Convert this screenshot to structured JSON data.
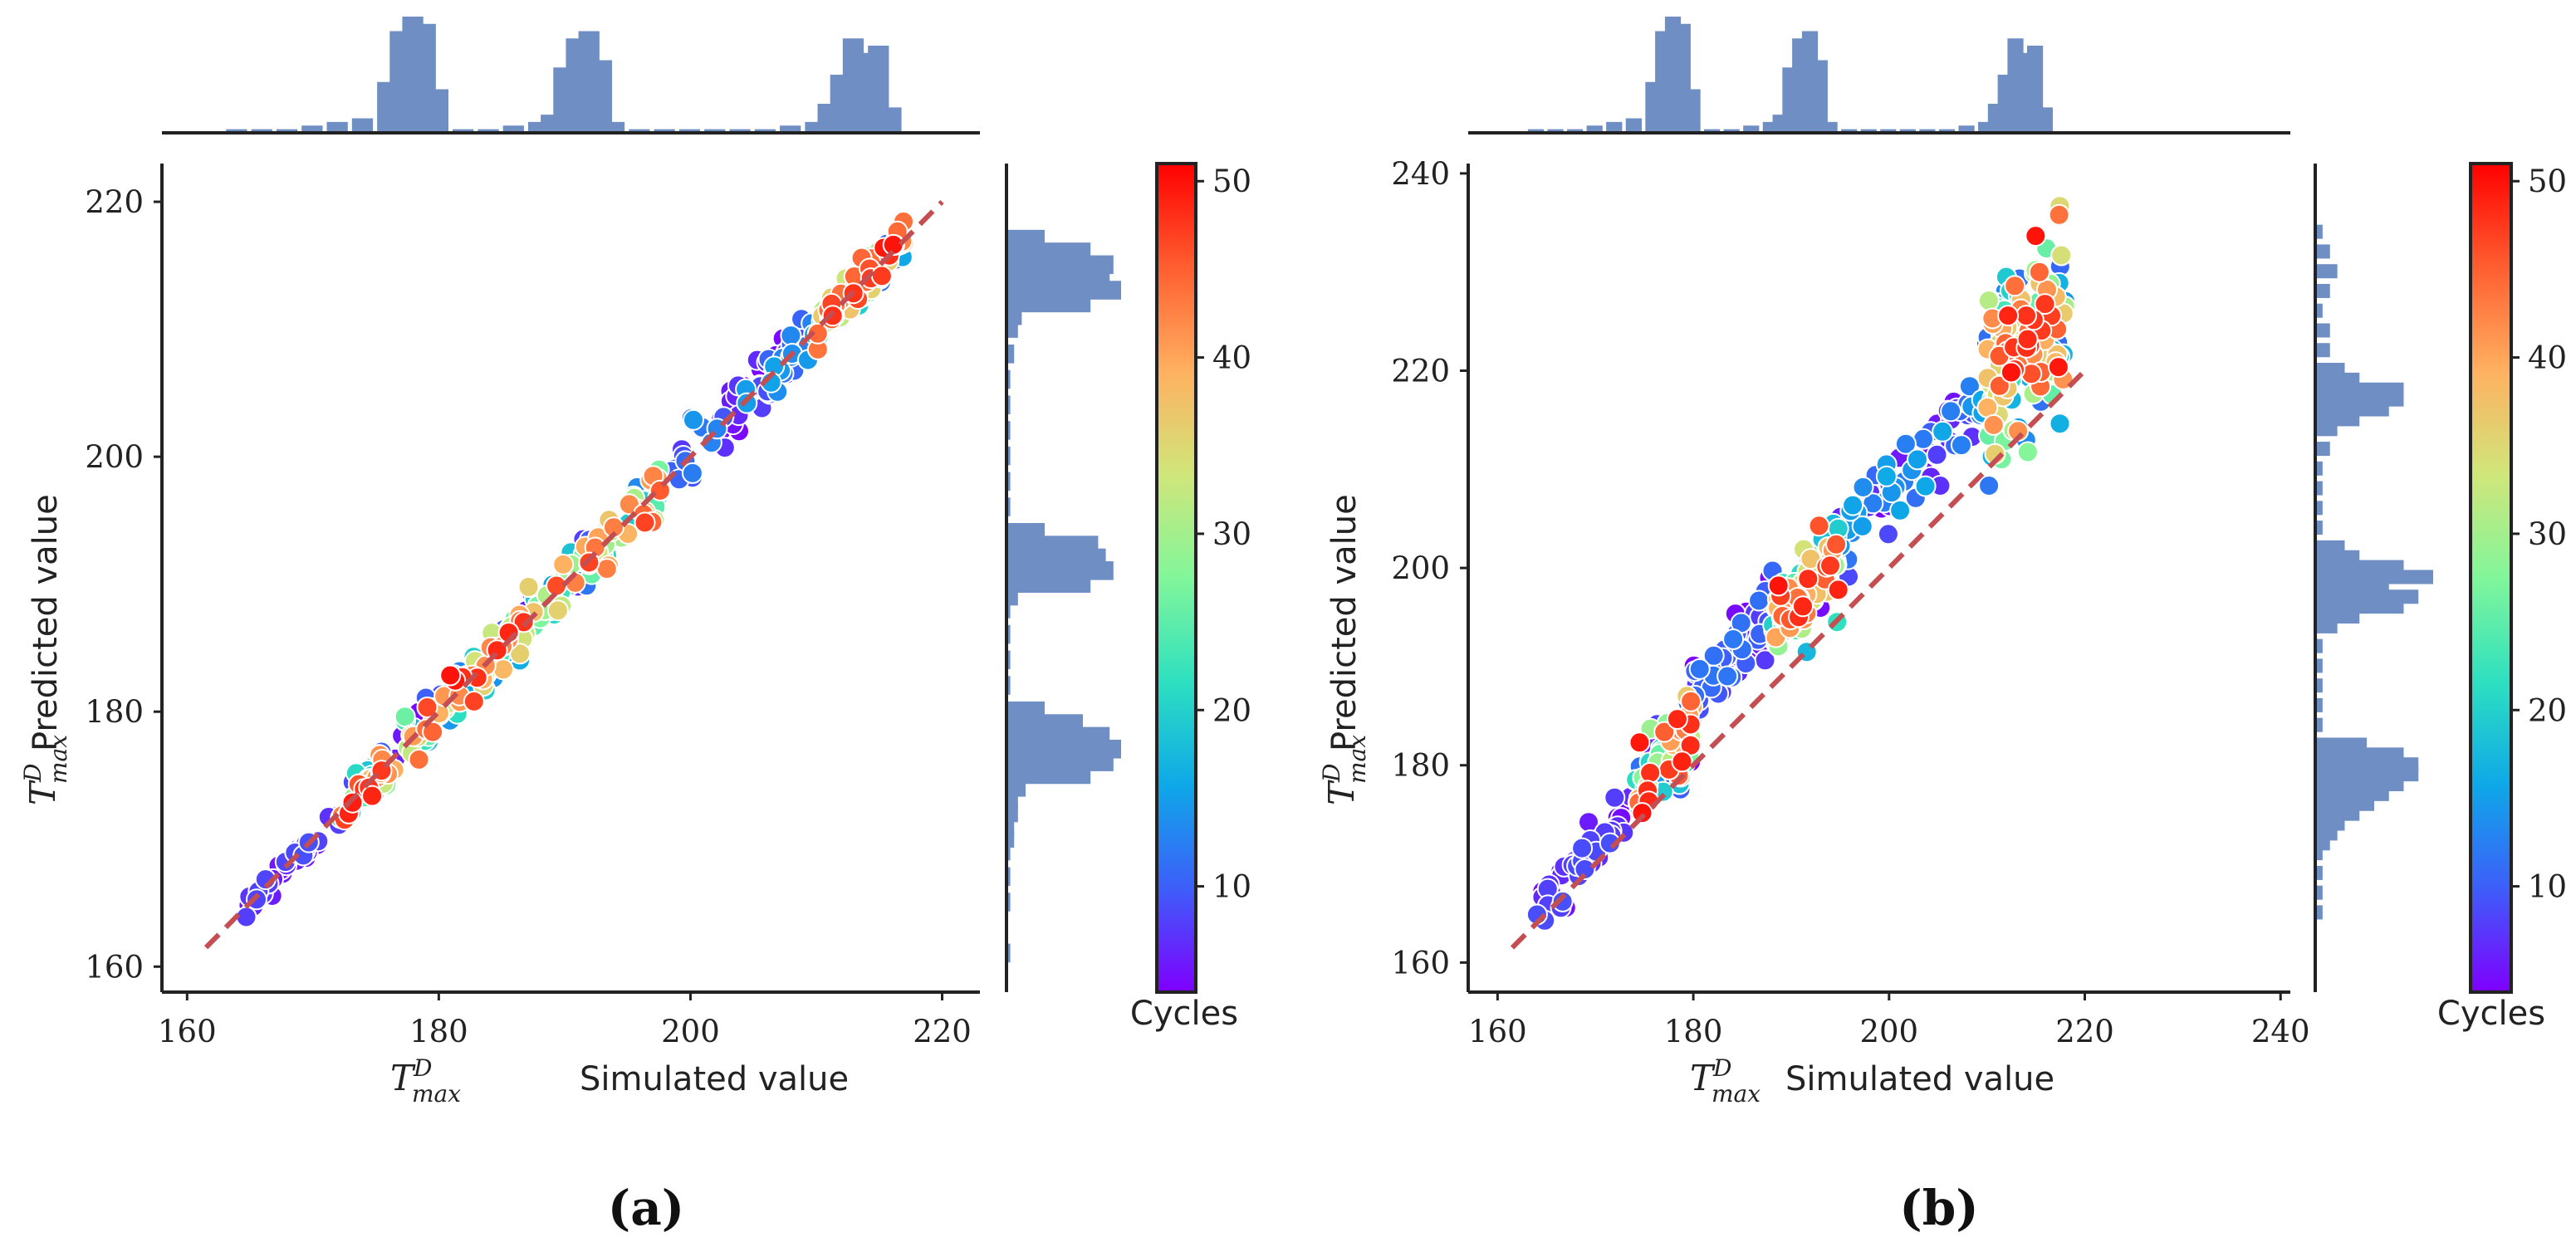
{
  "figure": {
    "colorbar_label": "Cycles",
    "colorbar_ticks": [
      10,
      20,
      30,
      40,
      50
    ],
    "colorbar_range": [
      4,
      51
    ],
    "colormap": [
      "#7f00ff",
      "#3d5ef9",
      "#0ea8e8",
      "#2ee0c0",
      "#82f69a",
      "#d0e67a",
      "#ffb060",
      "#ff5e30",
      "#ff0000"
    ],
    "xlabel_math": "T",
    "xlabel_sup": "D",
    "xlabel_sub": "max",
    "xlabel_text": "Simulated value",
    "ylabel_text": "Predicted value",
    "hist_color": "#6f8fc4",
    "dashed_line_color": "#c44e52"
  },
  "panel_a": {
    "label": "(a)"
  },
  "panel_b": {
    "label": "(b)"
  },
  "chart_data": [
    {
      "type": "scatter",
      "title": "(a)",
      "xlabel": "T_max^D Simulated value",
      "ylabel": "T_max^D Predicted value",
      "xlim": [
        158,
        223
      ],
      "ylim": [
        158,
        223
      ],
      "xticks": [
        160,
        180,
        200,
        220
      ],
      "yticks": [
        160,
        180,
        200,
        220
      ],
      "reference_line": [
        [
          161.5,
          161.5
        ],
        [
          220,
          220
        ]
      ],
      "colorbar": "Cycles",
      "clusters": [
        {
          "x_range": [
            164,
            172
          ],
          "y_offset": 0.0,
          "spread": 0.5,
          "cycles": [
            4,
            9
          ],
          "count": 40
        },
        {
          "x_range": [
            172,
            184
          ],
          "y_offset": 0.0,
          "spread": 0.9,
          "cycles": [
            4,
            50
          ],
          "count": 120
        },
        {
          "x_range": [
            184,
            198
          ],
          "y_offset": 0.0,
          "spread": 1.0,
          "cycles": [
            4,
            50
          ],
          "count": 130
        },
        {
          "x_range": [
            198,
            210
          ],
          "y_offset": 0.0,
          "spread": 1.1,
          "cycles": [
            4,
            16
          ],
          "count": 70
        },
        {
          "x_range": [
            210,
            217
          ],
          "y_offset": 0.0,
          "spread": 0.8,
          "cycles": [
            10,
            50
          ],
          "count": 130
        }
      ],
      "top_histogram": {
        "x": [
          164,
          166,
          168,
          170,
          172,
          174,
          176,
          177,
          178,
          179,
          180,
          182,
          184,
          186,
          188,
          189,
          190,
          191,
          192,
          193,
          194,
          196,
          198,
          200,
          202,
          204,
          206,
          208,
          210,
          211,
          212,
          213,
          214,
          215,
          216
        ],
        "counts": [
          1,
          1,
          1,
          2,
          3,
          4,
          14,
          28,
          32,
          30,
          12,
          1,
          1,
          2,
          3,
          5,
          18,
          26,
          28,
          20,
          3,
          1,
          1,
          1,
          1,
          1,
          1,
          2,
          3,
          8,
          16,
          26,
          22,
          24,
          7
        ]
      },
      "right_histogram": {
        "y": [
          161,
          165,
          167,
          169,
          170,
          171,
          172,
          173,
          174,
          175,
          176,
          177,
          178,
          179,
          180,
          182,
          184,
          186,
          188,
          189,
          190,
          191,
          192,
          193,
          194,
          196,
          198,
          200,
          202,
          204,
          206,
          208,
          210,
          211,
          212,
          213,
          214,
          215,
          216,
          217
        ],
        "counts": [
          1,
          1,
          1,
          1,
          2,
          2,
          3,
          3,
          5,
          22,
          28,
          30,
          27,
          20,
          10,
          1,
          1,
          1,
          1,
          3,
          22,
          28,
          26,
          24,
          10,
          1,
          1,
          1,
          1,
          1,
          1,
          2,
          3,
          4,
          22,
          30,
          27,
          28,
          22,
          10
        ]
      }
    },
    {
      "type": "scatter",
      "title": "(b)",
      "xlabel": "T_max^D Simulated value",
      "ylabel": "T_max^D Predicted value",
      "xlim": [
        157,
        241
      ],
      "ylim": [
        157,
        241
      ],
      "xticks": [
        160,
        180,
        200,
        220,
        240
      ],
      "yticks": [
        160,
        180,
        200,
        220,
        240
      ],
      "reference_line": [
        [
          161.5,
          161.5
        ],
        [
          220,
          220
        ]
      ],
      "colorbar": "Cycles",
      "clusters": [
        {
          "x_range": [
            164,
            174
          ],
          "y_offset": 1.3,
          "spread": 1.3,
          "cycles": [
            4,
            9
          ],
          "count": 60
        },
        {
          "x_range": [
            174,
            180
          ],
          "y_offset": 3.5,
          "spread": 2.2,
          "cycles": [
            4,
            50
          ],
          "count": 90
        },
        {
          "x_range": [
            180,
            188
          ],
          "y_offset": 7.5,
          "spread": 2.0,
          "cycles": [
            4,
            12
          ],
          "count": 60
        },
        {
          "x_range": [
            188,
            195
          ],
          "y_offset": 6.5,
          "spread": 2.4,
          "cycles": [
            4,
            50
          ],
          "count": 120
        },
        {
          "x_range": [
            195,
            210
          ],
          "y_offset": 8.0,
          "spread": 2.0,
          "cycles": [
            4,
            16
          ],
          "count": 70
        },
        {
          "x_range": [
            210,
            218
          ],
          "y_offset": 8.5,
          "spread": 4.5,
          "cycles": [
            10,
            50
          ],
          "count": 160
        }
      ],
      "top_histogram": {
        "x": [
          164,
          166,
          168,
          170,
          172,
          174,
          176,
          177,
          178,
          179,
          180,
          182,
          184,
          186,
          188,
          189,
          190,
          191,
          192,
          193,
          194,
          196,
          198,
          200,
          202,
          204,
          206,
          208,
          210,
          211,
          212,
          213,
          214,
          215,
          216
        ],
        "counts": [
          1,
          1,
          1,
          2,
          3,
          4,
          14,
          28,
          32,
          30,
          12,
          1,
          1,
          2,
          3,
          5,
          18,
          26,
          28,
          20,
          3,
          1,
          1,
          1,
          1,
          1,
          1,
          2,
          3,
          8,
          16,
          26,
          22,
          24,
          7
        ]
      },
      "right_histogram": {
        "y": [
          165,
          167,
          169,
          171,
          172,
          173,
          174,
          175,
          176,
          177,
          178,
          179,
          180,
          181,
          182,
          184,
          186,
          188,
          190,
          192,
          194,
          195,
          196,
          197,
          198,
          199,
          200,
          201,
          202,
          204,
          206,
          208,
          210,
          212,
          214,
          215,
          216,
          217,
          218,
          219,
          220,
          222,
          224,
          226,
          228,
          230,
          232,
          234
        ],
        "counts": [
          1,
          1,
          1,
          1,
          2,
          3,
          4,
          6,
          8,
          10,
          12,
          14,
          14,
          12,
          7,
          1,
          1,
          1,
          1,
          1,
          3,
          6,
          12,
          14,
          10,
          16,
          12,
          6,
          4,
          1,
          1,
          1,
          1,
          2,
          3,
          6,
          10,
          12,
          12,
          6,
          4,
          2,
          2,
          1,
          2,
          3,
          2,
          1
        ]
      }
    }
  ]
}
